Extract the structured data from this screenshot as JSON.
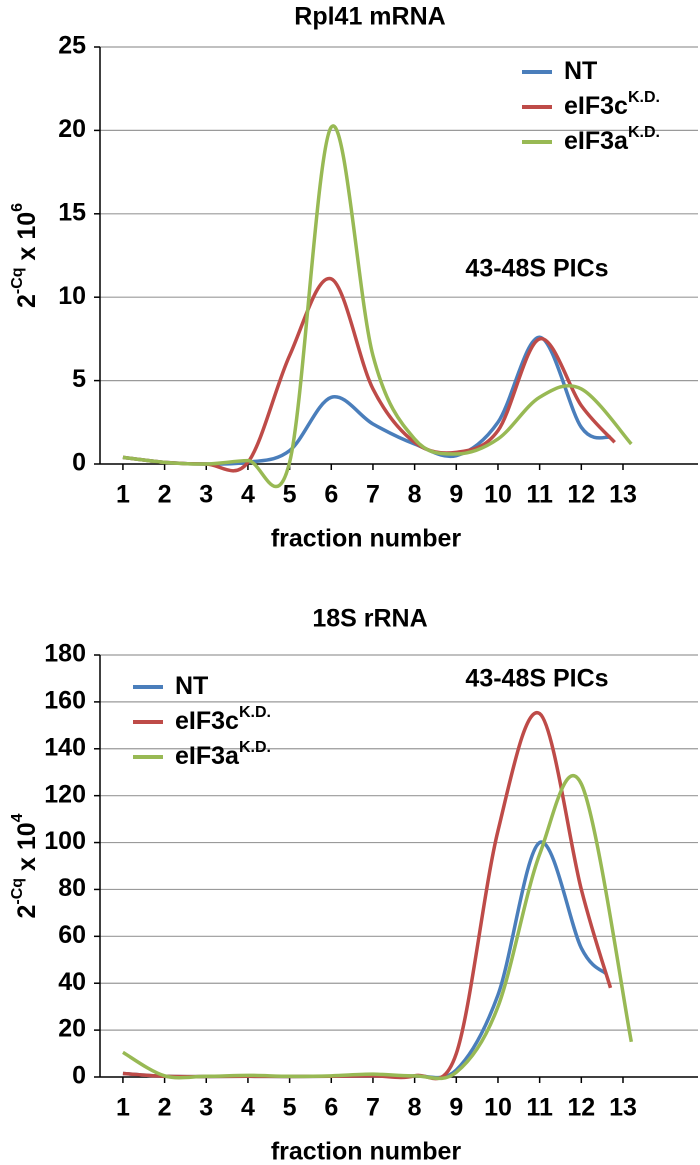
{
  "chart_data": [
    {
      "type": "line",
      "title": "Rpl41 mRNA",
      "ylabel": {
        "base": "2",
        "exp": "-Cq",
        "mult": " x 10",
        "mult_exp": "6"
      },
      "xlabel": "fraction number",
      "annotation": "43-48S PICs",
      "xlim": [
        0.45,
        14.8
      ],
      "xticks": [
        1,
        2,
        3,
        4,
        5,
        6,
        7,
        8,
        9,
        10,
        11,
        12,
        13
      ],
      "ylim": [
        0,
        25
      ],
      "yticks": [
        0,
        5,
        10,
        15,
        20,
        25
      ],
      "grid": true,
      "legend": "upper right",
      "series": [
        {
          "name": "NT",
          "name_superscript": null,
          "color": "#4a7ebb",
          "x": [
            1,
            2,
            3,
            4,
            5,
            6,
            7,
            8,
            9,
            10,
            11,
            12,
            12.7
          ],
          "values": [
            0.4,
            0.1,
            0,
            0.1,
            0.8,
            4.0,
            2.4,
            1.2,
            0.5,
            2.5,
            7.6,
            2.2,
            1.6
          ]
        },
        {
          "name": "eIF3c",
          "name_superscript": "K.D.",
          "color": "#be4b48",
          "x": [
            1,
            2,
            3,
            4,
            5,
            6,
            7,
            8,
            9,
            10,
            11,
            12,
            12.8
          ],
          "values": [
            0.4,
            0.1,
            0,
            0.1,
            6.5,
            11.1,
            4.5,
            1.3,
            0.7,
            2.0,
            7.5,
            3.5,
            1.3
          ]
        },
        {
          "name": "eIF3a",
          "name_superscript": "K.D.",
          "color": "#98b954",
          "x": [
            1,
            2,
            3,
            4,
            5,
            6,
            7,
            8,
            9,
            10,
            11,
            12,
            13.2
          ],
          "values": [
            0.4,
            0.1,
            0,
            0.2,
            0.1,
            20.2,
            6.5,
            1.5,
            0.6,
            1.5,
            4.0,
            4.5,
            1.2
          ]
        }
      ]
    },
    {
      "type": "line",
      "title": "18S rRNA",
      "ylabel": {
        "base": "2",
        "exp": "-Cq",
        "mult": " x 10",
        "mult_exp": "4"
      },
      "xlabel": "fraction number",
      "annotation": "43-48S PICs",
      "xlim": [
        0.45,
        14.8
      ],
      "xticks": [
        1,
        2,
        3,
        4,
        5,
        6,
        7,
        8,
        9,
        10,
        11,
        12,
        13
      ],
      "ylim": [
        0,
        180
      ],
      "yticks": [
        0,
        20,
        40,
        60,
        80,
        100,
        120,
        140,
        160,
        180
      ],
      "grid": true,
      "legend": "upper left",
      "series": [
        {
          "name": "NT",
          "name_superscript": null,
          "color": "#4a7ebb",
          "x": [
            1,
            2,
            3,
            4,
            5,
            6,
            7,
            8,
            9,
            10,
            11,
            12,
            12.6
          ],
          "values": [
            1.5,
            0.3,
            0.2,
            0.3,
            0.2,
            0.3,
            0.5,
            0.5,
            3,
            35,
            100,
            55,
            44
          ]
        },
        {
          "name": "eIF3c",
          "name_superscript": "K.D.",
          "color": "#be4b48",
          "x": [
            1,
            2,
            3,
            4,
            5,
            6,
            7,
            8,
            9,
            10,
            11,
            12,
            12.7
          ],
          "values": [
            1.5,
            0.3,
            0.2,
            0.3,
            0.2,
            0.3,
            0.5,
            0.5,
            10,
            105,
            155,
            80,
            38
          ]
        },
        {
          "name": "eIF3a",
          "name_superscript": "K.D.",
          "color": "#98b954",
          "x": [
            1,
            2,
            3,
            4,
            5,
            6,
            7,
            8,
            9,
            10,
            11,
            12,
            13.2
          ],
          "values": [
            10.5,
            0.5,
            0.3,
            0.7,
            0.3,
            0.5,
            1.2,
            0.5,
            2,
            30,
            95,
            125,
            15
          ]
        }
      ]
    }
  ]
}
